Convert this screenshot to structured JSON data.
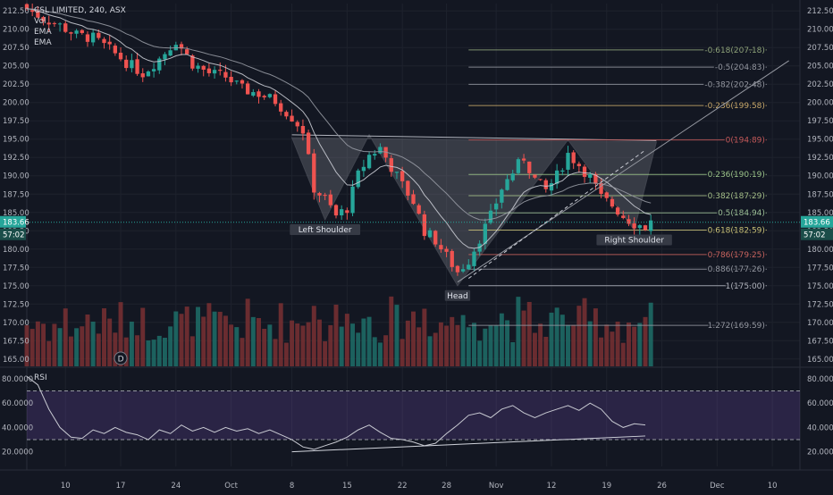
{
  "legend": {
    "title": "CSL LIMITED, 240, ASX",
    "vol": "Vol",
    "ema1": "EMA",
    "ema2": "EMA"
  },
  "price_labels": {
    "current": "183.66",
    "countdown": "57:02"
  },
  "chart_data": [
    {
      "type": "candlestick",
      "y_ticks": [
        "212.50",
        "210.00",
        "207.50",
        "205.00",
        "202.50",
        "200.00",
        "197.50",
        "195.00",
        "192.50",
        "190.00",
        "187.50",
        "185.00",
        "182.50",
        "180.00",
        "177.50",
        "175.00",
        "172.50",
        "170.00",
        "167.50",
        "165.00"
      ],
      "ylim": [
        164.0,
        213.5
      ],
      "x_ticks": [
        "10",
        "17",
        "24",
        "Oct",
        "8",
        "15",
        "22",
        "28",
        "Nov",
        "12",
        "19",
        "26",
        "Dec",
        "10"
      ],
      "x_tick_index": [
        7,
        17,
        27,
        37,
        48,
        58,
        68,
        76,
        85,
        95,
        105,
        115,
        125,
        135
      ],
      "x_index_range": [
        0,
        140
      ],
      "current_price": 183.66,
      "close_path": [
        [
          0,
          212.8
        ],
        [
          3,
          211.5
        ],
        [
          6,
          210.5
        ],
        [
          9,
          209.2
        ],
        [
          12,
          208.8
        ],
        [
          15,
          207.2
        ],
        [
          18,
          205.5
        ],
        [
          21,
          204.0
        ],
        [
          24,
          206.0
        ],
        [
          27,
          208.5
        ],
        [
          30,
          205.3
        ],
        [
          33,
          204.0
        ],
        [
          36,
          203.5
        ],
        [
          39,
          201.8
        ],
        [
          42,
          201.2
        ],
        [
          45,
          200.2
        ],
        [
          48,
          198.0
        ],
        [
          50,
          196.2
        ],
        [
          52,
          188.3
        ],
        [
          54,
          186.8
        ],
        [
          56,
          184.5
        ],
        [
          58,
          185.6
        ],
        [
          60,
          190.1
        ],
        [
          62,
          192.8
        ],
        [
          64,
          193.8
        ],
        [
          66,
          191.2
        ],
        [
          68,
          188.7
        ],
        [
          70,
          186.5
        ],
        [
          72,
          182.5
        ],
        [
          74,
          181.2
        ],
        [
          76,
          179.0
        ],
        [
          78,
          176.9
        ],
        [
          80,
          178.5
        ],
        [
          82,
          181.5
        ],
        [
          84,
          184.5
        ],
        [
          86,
          188.3
        ],
        [
          88,
          190.5
        ],
        [
          90,
          192.5
        ],
        [
          92,
          189.5
        ],
        [
          94,
          188.0
        ],
        [
          96,
          190.0
        ],
        [
          98,
          193.0
        ],
        [
          100,
          191.5
        ],
        [
          102,
          189.8
        ],
        [
          104,
          187.0
        ],
        [
          106,
          186.0
        ],
        [
          108,
          184.5
        ],
        [
          110,
          183.5
        ],
        [
          112,
          183.0
        ],
        [
          113,
          183.66
        ]
      ],
      "volume_ylim": [
        0,
        100
      ],
      "fib_levels": [
        {
          "label": "-0.618(207.18)",
          "value": 207.18,
          "color": "#8fa37a"
        },
        {
          "label": "-0.5(204.83)",
          "value": 204.83,
          "color": "#9598a1"
        },
        {
          "label": "-0.382(202.48)",
          "value": 202.48,
          "color": "#9598a1"
        },
        {
          "label": "-0.236(199.58)",
          "value": 199.58,
          "color": "#c8a86a"
        },
        {
          "label": "0(194.89)",
          "value": 194.89,
          "color": "#c65a5a"
        },
        {
          "label": "0.236(190.19)",
          "value": 190.19,
          "color": "#9cc58a"
        },
        {
          "label": "0.382(187.29)",
          "value": 187.29,
          "color": "#a6c08a"
        },
        {
          "label": "0.5(184.94)",
          "value": 184.94,
          "color": "#9cbf96"
        },
        {
          "label": "0.618(182.59)",
          "value": 182.59,
          "color": "#c9c176"
        },
        {
          "label": "0.786(179.25)",
          "value": 179.25,
          "color": "#c8635e"
        },
        {
          "label": "0.886(177.26)",
          "value": 177.26,
          "color": "#9598a1"
        },
        {
          "label": "1(175.00)",
          "value": 175.0,
          "color": "#b2b5be"
        },
        {
          "label": "1.272(169.59)",
          "value": 169.59,
          "color": "#9598a1"
        }
      ],
      "annotations": [
        {
          "text": "Left Shoulder",
          "x": 54,
          "y": 184.0
        },
        {
          "text": "Head",
          "x": 78,
          "y": 175.0
        },
        {
          "text": "Right Shoulder",
          "x": 110,
          "y": 182.6
        }
      ],
      "pattern_vertices": [
        [
          48,
          195.2
        ],
        [
          54,
          184.0
        ],
        [
          62,
          195.6
        ],
        [
          78,
          175.0
        ],
        [
          98,
          194.9
        ],
        [
          110,
          182.6
        ],
        [
          114,
          194.6
        ]
      ],
      "neckline": [
        [
          48,
          195.6
        ],
        [
          114,
          194.8
        ]
      ],
      "trend_line": [
        [
          78,
          175.5
        ],
        [
          138,
          205.7
        ]
      ],
      "trend_line_dashed": [
        [
          80,
          176.0
        ],
        [
          112,
          193.5
        ]
      ],
      "marker": {
        "text": "D",
        "x": 17
      }
    },
    {
      "type": "line",
      "title": "RSI",
      "y_ticks": [
        "80.0000",
        "60.0000",
        "40.0000",
        "20.0000"
      ],
      "ylim": [
        8,
        88
      ],
      "bands": [
        70,
        30
      ],
      "rsi_path": [
        [
          0,
          82
        ],
        [
          2,
          75
        ],
        [
          4,
          55
        ],
        [
          6,
          40
        ],
        [
          8,
          32
        ],
        [
          10,
          31
        ],
        [
          12,
          38
        ],
        [
          14,
          35
        ],
        [
          16,
          40
        ],
        [
          18,
          36
        ],
        [
          20,
          34
        ],
        [
          22,
          30
        ],
        [
          24,
          38
        ],
        [
          26,
          35
        ],
        [
          28,
          42
        ],
        [
          30,
          37
        ],
        [
          32,
          40
        ],
        [
          34,
          36
        ],
        [
          36,
          40
        ],
        [
          38,
          37
        ],
        [
          40,
          39
        ],
        [
          42,
          35
        ],
        [
          44,
          38
        ],
        [
          46,
          34
        ],
        [
          48,
          30
        ],
        [
          50,
          24
        ],
        [
          52,
          22
        ],
        [
          54,
          25
        ],
        [
          56,
          28
        ],
        [
          58,
          32
        ],
        [
          60,
          38
        ],
        [
          62,
          42
        ],
        [
          64,
          36
        ],
        [
          66,
          31
        ],
        [
          68,
          30
        ],
        [
          70,
          28
        ],
        [
          72,
          25
        ],
        [
          74,
          27
        ],
        [
          76,
          35
        ],
        [
          78,
          42
        ],
        [
          80,
          50
        ],
        [
          82,
          52
        ],
        [
          84,
          48
        ],
        [
          86,
          55
        ],
        [
          88,
          58
        ],
        [
          90,
          52
        ],
        [
          92,
          48
        ],
        [
          94,
          52
        ],
        [
          96,
          55
        ],
        [
          98,
          58
        ],
        [
          100,
          54
        ],
        [
          102,
          60
        ],
        [
          104,
          55
        ],
        [
          106,
          45
        ],
        [
          108,
          40
        ],
        [
          110,
          43
        ],
        [
          112,
          42
        ]
      ],
      "trend_line": [
        [
          48,
          20
        ],
        [
          112,
          33
        ]
      ]
    }
  ]
}
